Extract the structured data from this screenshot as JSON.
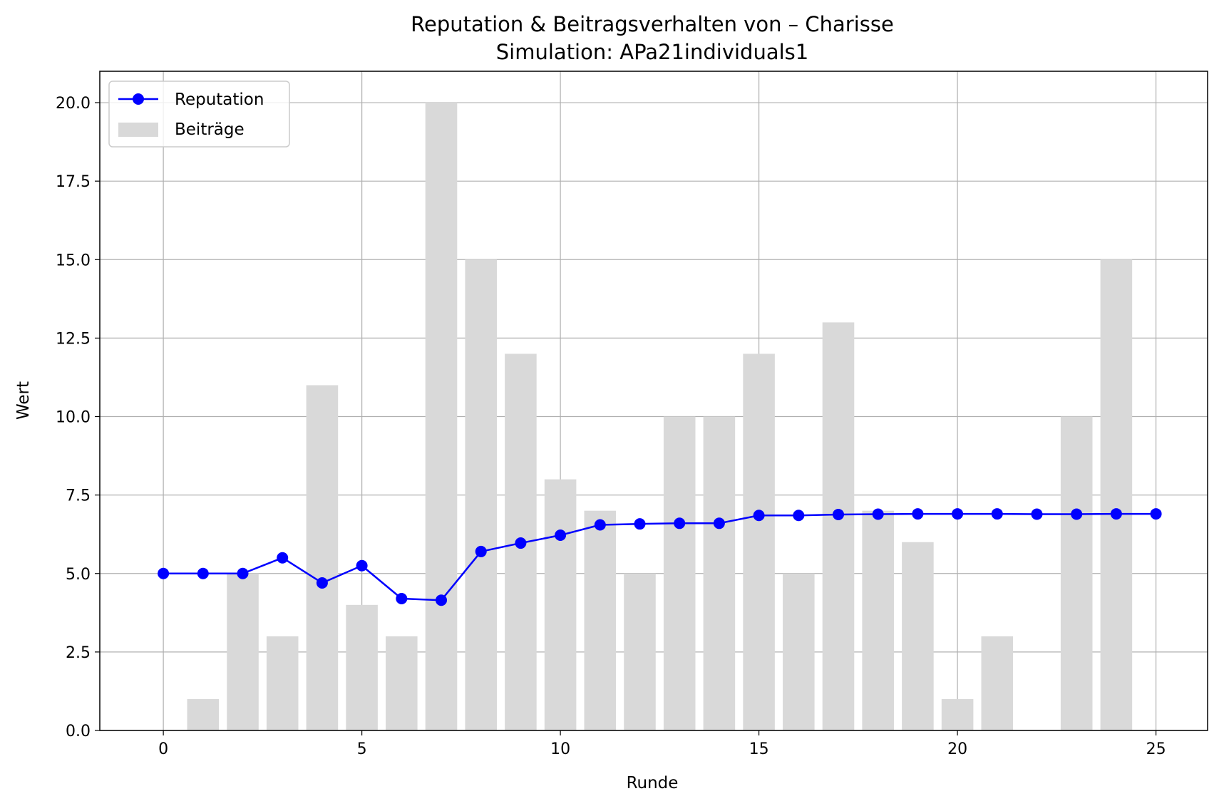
{
  "chart_data": {
    "type": "bar+line",
    "title": "Reputation & Beitragsverhalten von – Charisse",
    "subtitle": "Simulation: APa21individuals1",
    "xlabel": "Runde",
    "ylabel": "Wert",
    "xlim": [
      -1.6,
      26.3
    ],
    "ylim": [
      0,
      21
    ],
    "xticks": [
      0,
      5,
      10,
      15,
      20,
      25
    ],
    "xtick_labels": [
      "0",
      "5",
      "10",
      "15",
      "20",
      "25"
    ],
    "yticks": [
      0,
      2.5,
      5,
      7.5,
      10,
      12.5,
      15,
      17.5,
      20
    ],
    "ytick_labels": [
      "0.0",
      "2.5",
      "5.0",
      "7.5",
      "10.0",
      "12.5",
      "15.0",
      "17.5",
      "20.0"
    ],
    "grid": true,
    "legend_position": "top-left",
    "x": [
      0,
      1,
      2,
      3,
      4,
      5,
      6,
      7,
      8,
      9,
      10,
      11,
      12,
      13,
      14,
      15,
      16,
      17,
      18,
      19,
      20,
      21,
      22,
      23,
      24,
      25
    ],
    "series": [
      {
        "name": "Reputation",
        "kind": "line",
        "color": "#0000ff",
        "values": [
          5.0,
          5.0,
          5.0,
          5.5,
          4.7,
          5.25,
          4.2,
          4.15,
          5.7,
          5.97,
          6.22,
          6.55,
          6.58,
          6.6,
          6.6,
          6.85,
          6.85,
          6.88,
          6.89,
          6.9,
          6.9,
          6.9,
          6.89,
          6.89,
          6.9,
          6.9
        ]
      },
      {
        "name": "Beiträge",
        "kind": "bar",
        "color": "#d9d9d9",
        "values": [
          0,
          1,
          5,
          3,
          11,
          4,
          3,
          20,
          15,
          12,
          8,
          7,
          5,
          10,
          10,
          12,
          5,
          13,
          7,
          6,
          1,
          3,
          0,
          10,
          15,
          null
        ]
      }
    ]
  }
}
